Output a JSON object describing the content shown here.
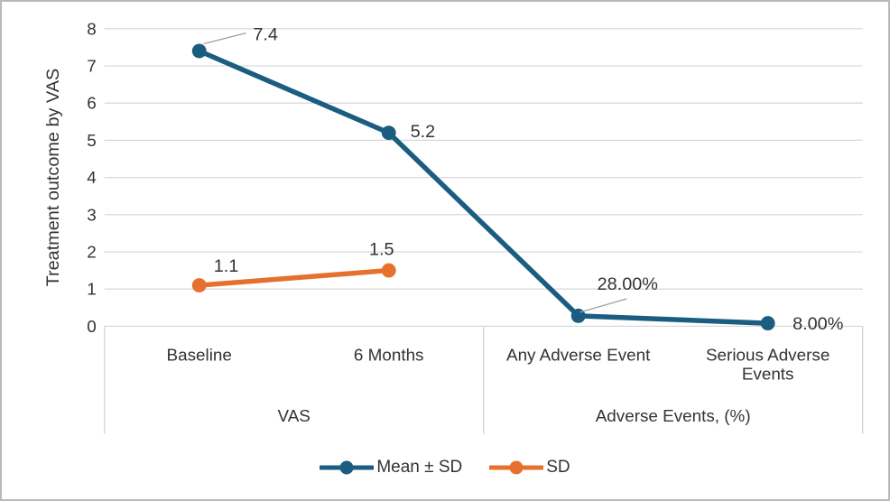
{
  "figure": {
    "background": "#ffffff",
    "border_color": "#b9b9b9"
  },
  "chart_data": {
    "type": "line",
    "title": "",
    "xlabel": "",
    "ylabel": "Treatment outcome by VAS",
    "ylim": [
      0,
      8
    ],
    "yticks": [
      0,
      1,
      2,
      3,
      4,
      5,
      6,
      7,
      8
    ],
    "grid": true,
    "gridline_color": "#d9d9d9",
    "axis_table_line_color": "#d4d4d4",
    "leader_line_color": "#a0a0a0",
    "text_color": "#333333",
    "legend_position": "bottom-center",
    "categories": [
      {
        "label": "Baseline",
        "lines": [
          "Baseline"
        ]
      },
      {
        "label": "6 Months",
        "lines": [
          "6 Months"
        ]
      },
      {
        "label": "Any Adverse Event",
        "lines": [
          "Any Adverse Event"
        ]
      },
      {
        "label": "Serious Adverse Events",
        "lines": [
          "Serious Adverse",
          "Events"
        ]
      }
    ],
    "category_groups": [
      {
        "label": "VAS",
        "start": 0,
        "end": 1
      },
      {
        "label": "Adverse Events, (%)",
        "start": 2,
        "end": 3
      }
    ],
    "series": [
      {
        "name": "Mean ± SD",
        "color": "#1a5d80",
        "values": [
          7.4,
          5.2,
          0.28,
          0.08
        ],
        "point_labels": [
          {
            "text": "7.4",
            "dx": 74,
            "dy": -18,
            "leader": [
              5,
              -8,
              52,
              -20
            ]
          },
          {
            "text": "5.2",
            "dx": 38,
            "dy": -1,
            "leader": null
          },
          {
            "text": "28.00%",
            "dx": 55,
            "dy": -35,
            "leader": [
              2,
              -4,
              54,
              -19
            ]
          },
          {
            "text": "8.00%",
            "dx": 56,
            "dy": 1,
            "leader": null
          }
        ]
      },
      {
        "name": "SD",
        "color": "#e6712e",
        "values": [
          1.1,
          1.5,
          null,
          null
        ],
        "point_labels": [
          {
            "text": "1.1",
            "dx": 30,
            "dy": -21,
            "leader": null
          },
          {
            "text": "1.5",
            "dx": -8,
            "dy": -23,
            "leader": null
          },
          null,
          null
        ]
      }
    ]
  }
}
